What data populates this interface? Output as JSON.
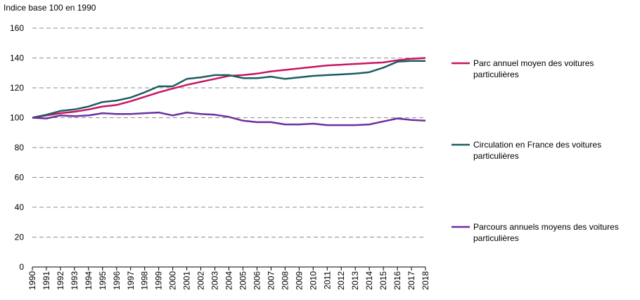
{
  "chart_data": {
    "type": "line",
    "ylabel": "Indice base 100 en 1990",
    "ylim": [
      0,
      160
    ],
    "yticks": [
      0,
      20,
      40,
      60,
      80,
      100,
      120,
      140,
      160
    ],
    "grid": true,
    "legend_position": "right",
    "categories": [
      "1990",
      "1991",
      "1992",
      "1993",
      "1994",
      "1995",
      "1996",
      "1997",
      "1998",
      "1999",
      "2000",
      "2001",
      "2002",
      "2003",
      "2004",
      "2005",
      "2006",
      "2007",
      "2008",
      "2009",
      "2010",
      "2011",
      "2012",
      "2013",
      "2014",
      "2015",
      "2016",
      "2017",
      "2018"
    ],
    "series": [
      {
        "name": "Parc annuel moyen des voitures particulières",
        "legend_lines": [
          "Parc annuel moyen des voitures",
          "particulières"
        ],
        "color": "#c8155f",
        "values": [
          100,
          101.5,
          103,
          104,
          105.5,
          107.5,
          108.5,
          111,
          114,
          117,
          119.5,
          122,
          124,
          126,
          128,
          128.5,
          129.5,
          131,
          132,
          133,
          134,
          135,
          135.5,
          136,
          136.5,
          137,
          138.5,
          139.5,
          140
        ]
      },
      {
        "name": "Circulation en France des voitures particulières",
        "legend_lines": [
          "Circulation en France des voitures",
          "particulières"
        ],
        "color": "#1b5d62",
        "values": [
          100,
          102,
          104.5,
          105.5,
          107.5,
          110.5,
          111.5,
          113.5,
          117,
          121,
          121,
          126,
          127,
          128.5,
          128.5,
          126.5,
          126.5,
          127.5,
          126,
          127,
          128,
          128.5,
          129,
          129.5,
          130.5,
          133.5,
          137.5,
          138,
          138
        ]
      },
      {
        "name": "Parcours annuels moyens des voitures particulières",
        "legend_lines": [
          "Parcours annuels moyens des voitures",
          "particulières"
        ],
        "color": "#6b2fa0",
        "values": [
          100,
          99.5,
          101.5,
          101,
          101.5,
          103,
          102.5,
          102.5,
          103,
          103.5,
          101.5,
          103.5,
          102.5,
          102,
          100.5,
          98,
          97,
          97,
          95.5,
          95.5,
          96,
          95,
          95,
          95,
          95.5,
          97.5,
          99.5,
          98.5,
          98
        ]
      }
    ]
  }
}
